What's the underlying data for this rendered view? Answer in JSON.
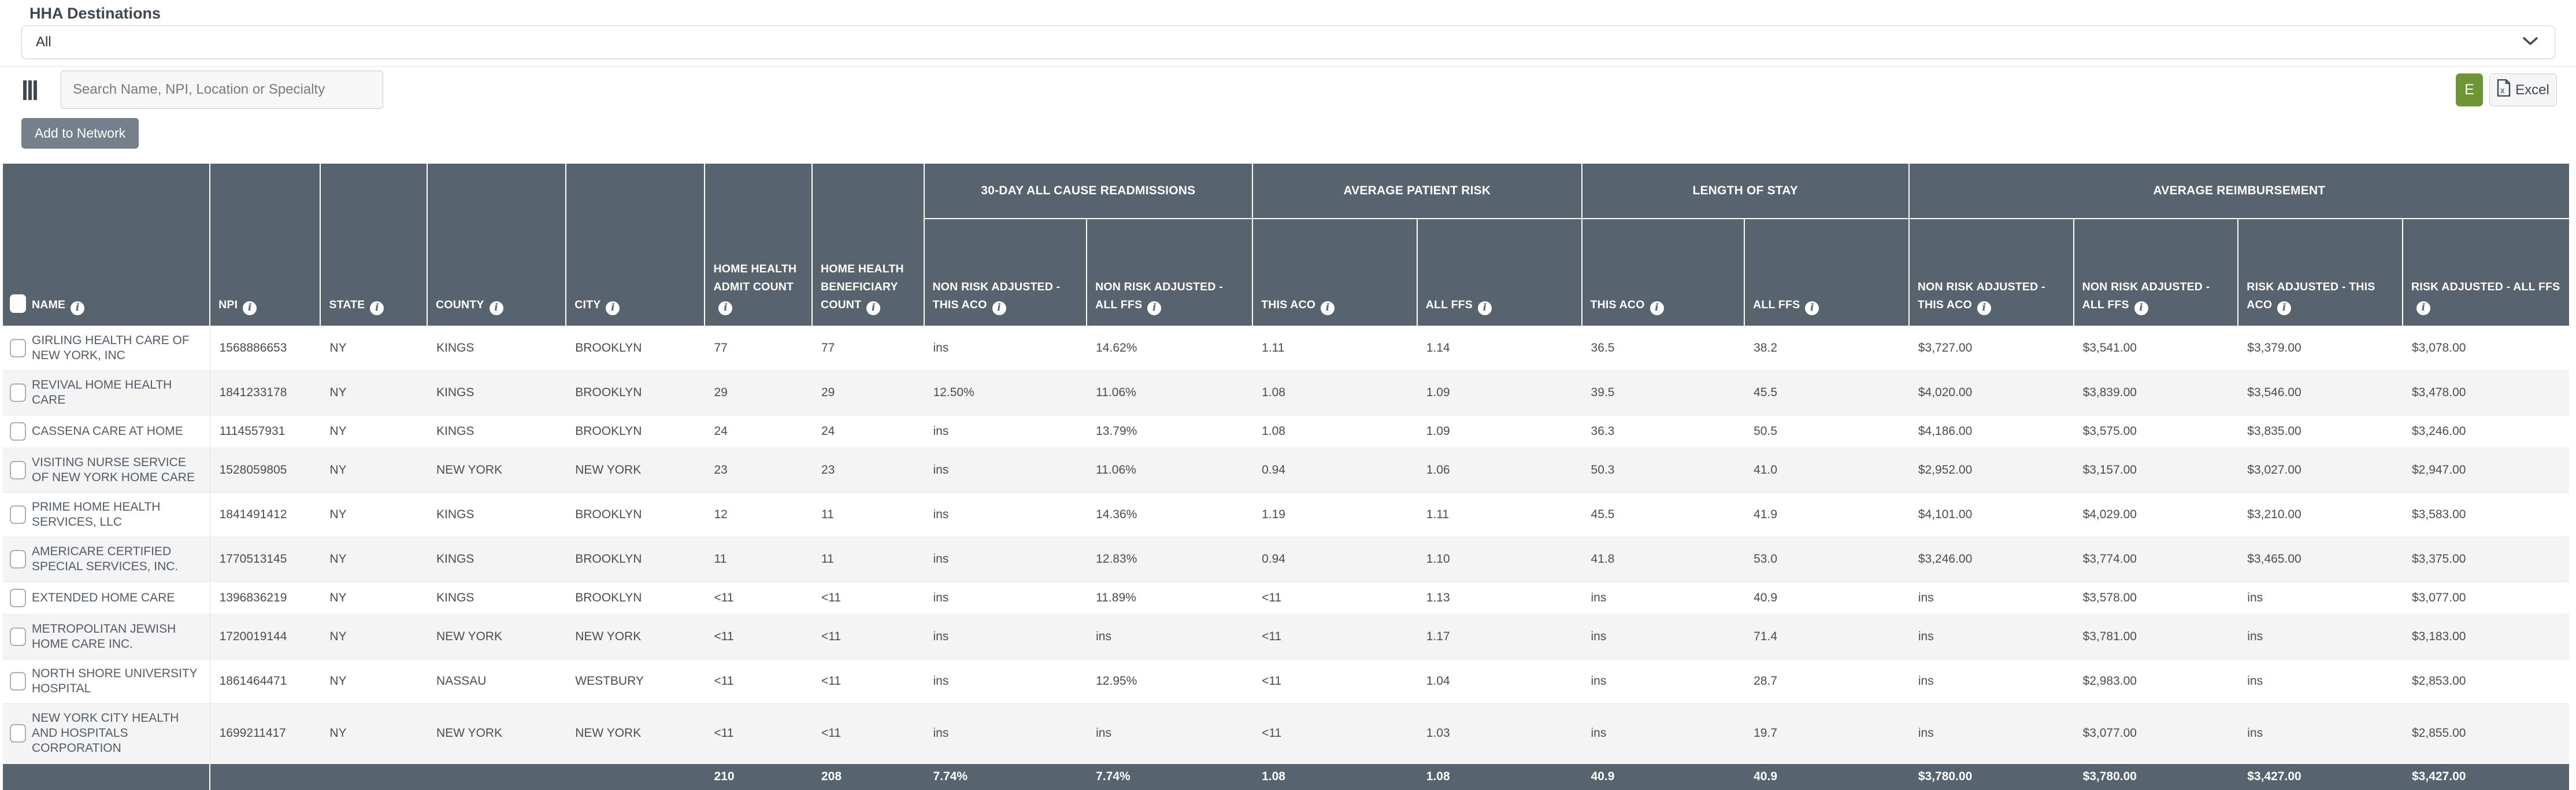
{
  "header": {
    "section_label": "HHA Destinations",
    "filter_value": "All"
  },
  "toolbar": {
    "search_placeholder": "Search Name, NPI, Location or Specialty",
    "add_button_label": "Add to Network",
    "e_button_label": "E",
    "excel_button_label": "Excel"
  },
  "colors": {
    "header_bg": "#57636d",
    "accent_green": "#6c9733",
    "row_alt": "#f4f4f4",
    "gray_button": "#75808a"
  },
  "table": {
    "group_headers": [
      {
        "label": "30-DAY ALL CAUSE READMISSIONS",
        "span": 2
      },
      {
        "label": "AVERAGE PATIENT RISK",
        "span": 2
      },
      {
        "label": "LENGTH OF STAY",
        "span": 2
      },
      {
        "label": "AVERAGE REIMBURSEMENT",
        "span": 4
      }
    ],
    "columns": [
      "NAME",
      "NPI",
      "STATE",
      "COUNTY",
      "CITY",
      "HOME HEALTH ADMIT COUNT",
      "HOME HEALTH BENEFICIARY COUNT",
      "NON RISK ADJUSTED - THIS ACO",
      "NON RISK ADJUSTED - ALL FFS",
      "THIS ACO",
      "ALL FFS",
      "THIS ACO",
      "ALL FFS",
      "NON RISK ADJUSTED - THIS ACO",
      "NON RISK ADJUSTED - ALL FFS",
      "RISK ADJUSTED - THIS ACO",
      "RISK ADJUSTED - ALL FFS"
    ],
    "rows": [
      [
        "GIRLING HEALTH CARE OF NEW YORK, INC",
        "1568886653",
        "NY",
        "KINGS",
        "BROOKLYN",
        "77",
        "77",
        "ins",
        "14.62%",
        "1.11",
        "1.14",
        "36.5",
        "38.2",
        "$3,727.00",
        "$3,541.00",
        "$3,379.00",
        "$3,078.00"
      ],
      [
        "REVIVAL HOME HEALTH CARE",
        "1841233178",
        "NY",
        "KINGS",
        "BROOKLYN",
        "29",
        "29",
        "12.50%",
        "11.06%",
        "1.08",
        "1.09",
        "39.5",
        "45.5",
        "$4,020.00",
        "$3,839.00",
        "$3,546.00",
        "$3,478.00"
      ],
      [
        "CASSENA CARE AT HOME",
        "1114557931",
        "NY",
        "KINGS",
        "BROOKLYN",
        "24",
        "24",
        "ins",
        "13.79%",
        "1.08",
        "1.09",
        "36.3",
        "50.5",
        "$4,186.00",
        "$3,575.00",
        "$3,835.00",
        "$3,246.00"
      ],
      [
        "VISITING NURSE SERVICE OF NEW YORK HOME CARE",
        "1528059805",
        "NY",
        "NEW YORK",
        "NEW YORK",
        "23",
        "23",
        "ins",
        "11.06%",
        "0.94",
        "1.06",
        "50.3",
        "41.0",
        "$2,952.00",
        "$3,157.00",
        "$3,027.00",
        "$2,947.00"
      ],
      [
        "PRIME HOME HEALTH SERVICES, LLC",
        "1841491412",
        "NY",
        "KINGS",
        "BROOKLYN",
        "12",
        "11",
        "ins",
        "14.36%",
        "1.19",
        "1.11",
        "45.5",
        "41.9",
        "$4,101.00",
        "$4,029.00",
        "$3,210.00",
        "$3,583.00"
      ],
      [
        "AMERICARE CERTIFIED SPECIAL SERVICES, INC.",
        "1770513145",
        "NY",
        "KINGS",
        "BROOKLYN",
        "11",
        "11",
        "ins",
        "12.83%",
        "0.94",
        "1.10",
        "41.8",
        "53.0",
        "$3,246.00",
        "$3,774.00",
        "$3,465.00",
        "$3,375.00"
      ],
      [
        "EXTENDED HOME CARE",
        "1396836219",
        "NY",
        "KINGS",
        "BROOKLYN",
        "<11",
        "<11",
        "ins",
        "11.89%",
        "<11",
        "1.13",
        "ins",
        "40.9",
        "ins",
        "$3,578.00",
        "ins",
        "$3,077.00"
      ],
      [
        "METROPOLITAN JEWISH HOME CARE INC.",
        "1720019144",
        "NY",
        "NEW YORK",
        "NEW YORK",
        "<11",
        "<11",
        "ins",
        "ins",
        "<11",
        "1.17",
        "ins",
        "71.4",
        "ins",
        "$3,781.00",
        "ins",
        "$3,183.00"
      ],
      [
        "NORTH SHORE UNIVERSITY HOSPITAL",
        "1861464471",
        "NY",
        "NASSAU",
        "WESTBURY",
        "<11",
        "<11",
        "ins",
        "12.95%",
        "<11",
        "1.04",
        "ins",
        "28.7",
        "ins",
        "$2,983.00",
        "ins",
        "$2,853.00"
      ],
      [
        "NEW YORK CITY HEALTH AND HOSPITALS CORPORATION",
        "1699211417",
        "NY",
        "NEW YORK",
        "NEW YORK",
        "<11",
        "<11",
        "ins",
        "ins",
        "<11",
        "1.03",
        "ins",
        "19.7",
        "ins",
        "$3,077.00",
        "ins",
        "$2,855.00"
      ]
    ],
    "footer": [
      "",
      "",
      "",
      "",
      "",
      "210",
      "208",
      "7.74%",
      "7.74%",
      "1.08",
      "1.08",
      "40.9",
      "40.9",
      "$3,780.00",
      "$3,780.00",
      "$3,427.00",
      "$3,427.00"
    ]
  }
}
